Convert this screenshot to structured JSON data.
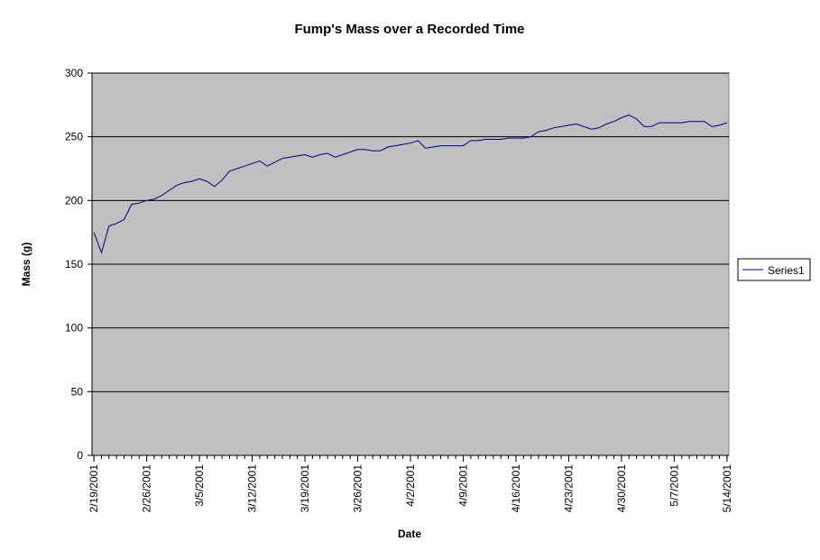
{
  "chart_data": {
    "type": "line",
    "title": "Fump's Mass over a Recorded Time",
    "xlabel": "Date",
    "ylabel": "Mass (g)",
    "x_start": "2/19/2001",
    "x_end": "5/14/2001",
    "ylim": [
      0,
      300
    ],
    "yticks": [
      0,
      50,
      100,
      150,
      200,
      250,
      300
    ],
    "xticks": [
      "2/19/2001",
      "2/26/2001",
      "3/5/2001",
      "3/12/2001",
      "3/19/2001",
      "3/26/2001",
      "4/2/2001",
      "4/9/2001",
      "4/16/2001",
      "4/23/2001",
      "4/30/2001",
      "5/7/2001",
      "5/14/2001"
    ],
    "grid": true,
    "legend_position": "right",
    "series": [
      {
        "name": "Series1",
        "color": "#000080",
        "points": [
          [
            "2/19/2001",
            175
          ],
          [
            "2/20/2001",
            159
          ],
          [
            "2/21/2001",
            180
          ],
          [
            "2/22/2001",
            182
          ],
          [
            "2/23/2001",
            185
          ],
          [
            "2/24/2001",
            197
          ],
          [
            "2/25/2001",
            198
          ],
          [
            "2/26/2001",
            200
          ],
          [
            "2/27/2001",
            201
          ],
          [
            "2/28/2001",
            204
          ],
          [
            "3/1/2001",
            208
          ],
          [
            "3/2/2001",
            212
          ],
          [
            "3/3/2001",
            214
          ],
          [
            "3/4/2001",
            215
          ],
          [
            "3/5/2001",
            217
          ],
          [
            "3/6/2001",
            215
          ],
          [
            "3/7/2001",
            211
          ],
          [
            "3/8/2001",
            216
          ],
          [
            "3/9/2001",
            223
          ],
          [
            "3/10/2001",
            225
          ],
          [
            "3/11/2001",
            227
          ],
          [
            "3/12/2001",
            229
          ],
          [
            "3/13/2001",
            231
          ],
          [
            "3/14/2001",
            227
          ],
          [
            "3/15/2001",
            230
          ],
          [
            "3/16/2001",
            233
          ],
          [
            "3/17/2001",
            234
          ],
          [
            "3/18/2001",
            235
          ],
          [
            "3/19/2001",
            236
          ],
          [
            "3/20/2001",
            234
          ],
          [
            "3/21/2001",
            236
          ],
          [
            "3/22/2001",
            237
          ],
          [
            "3/23/2001",
            234
          ],
          [
            "3/24/2001",
            236
          ],
          [
            "3/25/2001",
            238
          ],
          [
            "3/26/2001",
            240
          ],
          [
            "3/27/2001",
            240
          ],
          [
            "3/28/2001",
            239
          ],
          [
            "3/29/2001",
            239
          ],
          [
            "3/30/2001",
            242
          ],
          [
            "3/31/2001",
            243
          ],
          [
            "4/1/2001",
            244
          ],
          [
            "4/2/2001",
            245
          ],
          [
            "4/3/2001",
            247
          ],
          [
            "4/4/2001",
            241
          ],
          [
            "4/5/2001",
            242
          ],
          [
            "4/6/2001",
            243
          ],
          [
            "4/7/2001",
            243
          ],
          [
            "4/8/2001",
            243
          ],
          [
            "4/9/2001",
            243
          ],
          [
            "4/10/2001",
            247
          ],
          [
            "4/11/2001",
            247
          ],
          [
            "4/12/2001",
            248
          ],
          [
            "4/13/2001",
            248
          ],
          [
            "4/14/2001",
            248
          ],
          [
            "4/15/2001",
            249
          ],
          [
            "4/16/2001",
            249
          ],
          [
            "4/17/2001",
            249
          ],
          [
            "4/18/2001",
            250
          ],
          [
            "4/19/2001",
            254
          ],
          [
            "4/20/2001",
            255
          ],
          [
            "4/21/2001",
            257
          ],
          [
            "4/22/2001",
            258
          ],
          [
            "4/23/2001",
            259
          ],
          [
            "4/24/2001",
            260
          ],
          [
            "4/25/2001",
            258
          ],
          [
            "4/26/2001",
            256
          ],
          [
            "4/27/2001",
            257
          ],
          [
            "4/28/2001",
            260
          ],
          [
            "4/29/2001",
            262
          ],
          [
            "4/30/2001",
            265
          ],
          [
            "5/1/2001",
            267
          ],
          [
            "5/2/2001",
            264
          ],
          [
            "5/3/2001",
            258
          ],
          [
            "5/4/2001",
            258
          ],
          [
            "5/5/2001",
            261
          ],
          [
            "5/6/2001",
            261
          ],
          [
            "5/7/2001",
            261
          ],
          [
            "5/8/2001",
            261
          ],
          [
            "5/9/2001",
            262
          ],
          [
            "5/10/2001",
            262
          ],
          [
            "5/11/2001",
            262
          ],
          [
            "5/12/2001",
            258
          ],
          [
            "5/13/2001",
            259
          ],
          [
            "5/14/2001",
            261
          ]
        ]
      }
    ]
  }
}
